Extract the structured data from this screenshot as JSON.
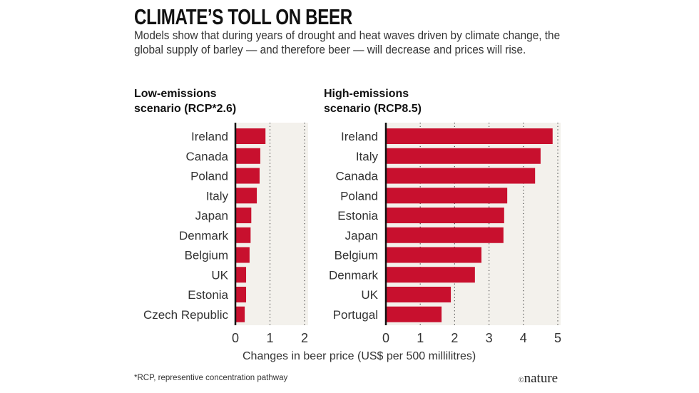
{
  "title": "CLIMATE’S TOLL ON BEER",
  "subtitle": "Models show that during years of drought and heat waves driven by climate change, the global supply of barley — and therefore beer — will decrease and prices will rise.",
  "footnote": "*RCP, representive concentration pathway",
  "logo": {
    "symbol": "©",
    "text": "nature"
  },
  "colors": {
    "bar": "#c8102e",
    "panel_bg": "#f3f1ec",
    "axis": "#111111",
    "grid": "#444444"
  },
  "chart_data": [
    {
      "type": "bar",
      "orientation": "horizontal",
      "title": "Low-emissions scenario (RCP*2.6)",
      "title_lines": [
        "Low-emissions",
        "scenario (RCP*2.6)"
      ],
      "categories": [
        "Ireland",
        "Canada",
        "Poland",
        "Italy",
        "Japan",
        "Denmark",
        "Belgium",
        "UK",
        "Estonia",
        "Czech Republic"
      ],
      "values": [
        0.87,
        0.72,
        0.7,
        0.62,
        0.46,
        0.44,
        0.41,
        0.31,
        0.31,
        0.27
      ],
      "xlim": [
        0,
        2
      ],
      "xticks": [
        "0",
        "1",
        "2"
      ],
      "grid": "dotted vertical"
    },
    {
      "type": "bar",
      "orientation": "horizontal",
      "title": "High-emissions scenario (RCP8.5)",
      "title_lines": [
        "High-emissions",
        "scenario (RCP8.5)"
      ],
      "categories": [
        "Ireland",
        "Italy",
        "Canada",
        "Poland",
        "Estonia",
        "Japan",
        "Belgium",
        "Denmark",
        "UK",
        "Portugal"
      ],
      "values": [
        4.85,
        4.5,
        4.34,
        3.53,
        3.44,
        3.42,
        2.78,
        2.59,
        1.89,
        1.62
      ],
      "xlim": [
        0,
        5
      ],
      "xticks": [
        "0",
        "1",
        "2",
        "3",
        "4",
        "5"
      ],
      "grid": "dotted vertical"
    }
  ],
  "xlabel": "Changes in beer price (US$ per 500 millilitres)"
}
